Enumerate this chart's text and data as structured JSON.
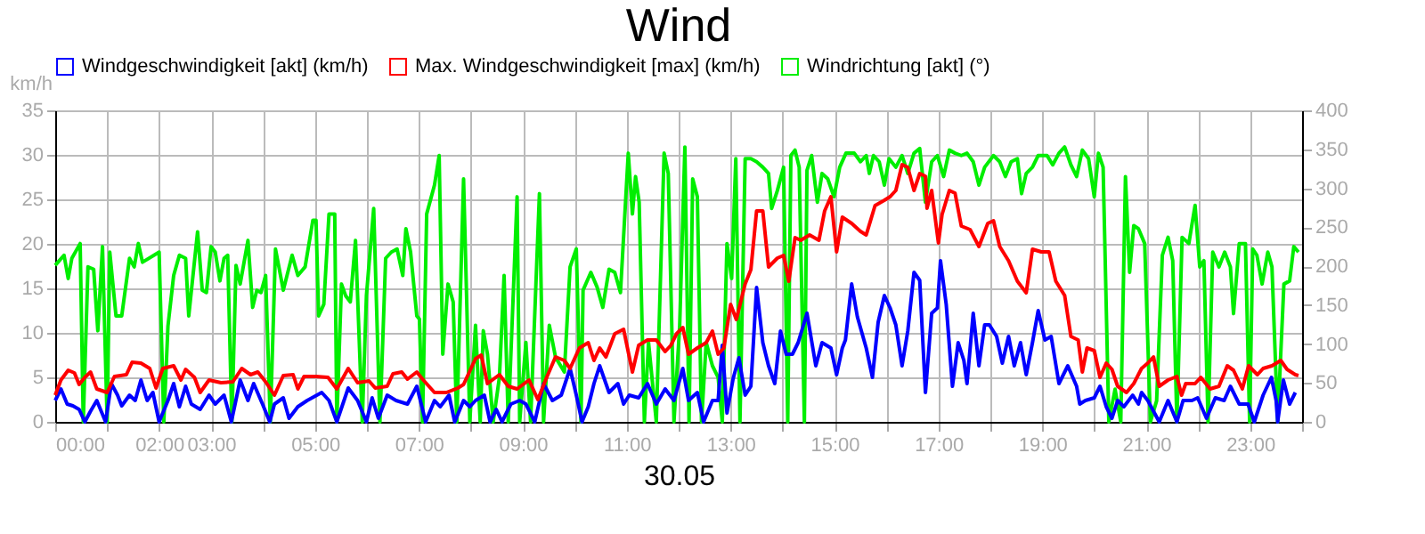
{
  "chart_data": {
    "type": "line",
    "title": "Wind",
    "xlabel": "30.05",
    "ylabel": "km/h",
    "xlim": [
      0,
      24
    ],
    "ylim": [
      0,
      35
    ],
    "yticks": [
      0,
      5,
      10,
      15,
      20,
      25,
      30,
      35
    ],
    "y2lim": [
      0,
      400
    ],
    "y2ticks": [
      0,
      50,
      100,
      150,
      200,
      250,
      300,
      350,
      400
    ],
    "xticks": [
      {
        "value": 0,
        "label": "00:00"
      },
      {
        "value": 1,
        "label": null
      },
      {
        "value": 2,
        "label": "02:00"
      },
      {
        "value": 3,
        "label": "03:00"
      },
      {
        "value": 4,
        "label": null
      },
      {
        "value": 5,
        "label": "05:00"
      },
      {
        "value": 6,
        "label": null
      },
      {
        "value": 7,
        "label": "07:00"
      },
      {
        "value": 8,
        "label": null
      },
      {
        "value": 9,
        "label": "09:00"
      },
      {
        "value": 10,
        "label": null
      },
      {
        "value": 11,
        "label": "11:00"
      },
      {
        "value": 12,
        "label": null
      },
      {
        "value": 13,
        "label": "13:00"
      },
      {
        "value": 14,
        "label": null
      },
      {
        "value": 15,
        "label": "15:00"
      },
      {
        "value": 16,
        "label": null
      },
      {
        "value": 17,
        "label": "17:00"
      },
      {
        "value": 18,
        "label": null
      },
      {
        "value": 19,
        "label": "19:00"
      },
      {
        "value": 20,
        "label": null
      },
      {
        "value": 21,
        "label": "21:00"
      },
      {
        "value": 22,
        "label": null
      },
      {
        "value": 23,
        "label": "23:00"
      },
      {
        "value": 24,
        "label": null
      }
    ],
    "grid": true,
    "legend": "top",
    "marker": "none",
    "line_style": "solid",
    "series": [
      {
        "name": "Windgeschwindigkeit [akt] (km/h)",
        "color": "#0000ff",
        "x": [
          0,
          0.11,
          0.23,
          0.34,
          0.46,
          0.57,
          0.68,
          0.8,
          0.97,
          1.08,
          1.2,
          1.28,
          1.43,
          1.54,
          1.65,
          1.77,
          1.88,
          2.0,
          2.17,
          2.28,
          2.39,
          2.51,
          2.62,
          2.79,
          2.96,
          3.08,
          3.25,
          3.39,
          3.56,
          3.71,
          3.82,
          3.99,
          4.13,
          4.22,
          4.39,
          4.5,
          4.67,
          4.85,
          5.13,
          5.27,
          5.42,
          5.64,
          5.82,
          5.99,
          6.1,
          6.22,
          6.39,
          6.56,
          6.78,
          6.96,
          7.13,
          7.3,
          7.41,
          7.58,
          7.69,
          7.86,
          7.98,
          8.09,
          8.26,
          8.37,
          8.49,
          8.6,
          8.77,
          8.94,
          9.06,
          9.23,
          9.4,
          9.57,
          9.74,
          9.91,
          10.03,
          10.14,
          10.26,
          10.37,
          10.48,
          10.66,
          10.83,
          10.94,
          11.05,
          11.23,
          11.4,
          11.57,
          11.74,
          11.91,
          12.08,
          12.19,
          12.36,
          12.48,
          12.65,
          12.76,
          12.84,
          12.93,
          13.05,
          13.16,
          13.28,
          13.39,
          13.5,
          13.62,
          13.73,
          13.85,
          13.96,
          14.07,
          14.19,
          14.3,
          14.47,
          14.64,
          14.76,
          14.93,
          15.04,
          15.15,
          15.21,
          15.33,
          15.44,
          15.61,
          15.73,
          15.84,
          15.96,
          16.07,
          16.18,
          16.3,
          16.41,
          16.53,
          16.64,
          16.75,
          16.87,
          16.98,
          17.04,
          17.15,
          17.27,
          17.38,
          17.49,
          17.55,
          17.67,
          17.78,
          17.89,
          17.98,
          18.12,
          18.23,
          18.35,
          18.46,
          18.58,
          18.69,
          18.81,
          18.92,
          19.05,
          19.17,
          19.32,
          19.49,
          19.66,
          19.72,
          19.83,
          20.0,
          20.11,
          20.23,
          20.34,
          20.45,
          20.57,
          20.74,
          20.85,
          20.91,
          21.03,
          21.25,
          21.42,
          21.59,
          21.71,
          21.88,
          21.99,
          22.16,
          22.33,
          22.5,
          22.62,
          22.79,
          22.96,
          23.08,
          23.25,
          23.41,
          23.5,
          23.53,
          23.64,
          23.76,
          23.87
        ],
        "values": [
          2.4,
          3.7,
          2.0,
          1.8,
          1.4,
          0,
          1.2,
          2.4,
          0,
          4.3,
          3.0,
          1.8,
          3.0,
          2.4,
          4.7,
          2.4,
          3.3,
          0,
          2.4,
          4.3,
          1.7,
          4.0,
          2.0,
          1.4,
          3.0,
          2.0,
          3.0,
          0,
          4.7,
          2.4,
          4.3,
          2.0,
          0,
          2.0,
          2.7,
          0.4,
          1.7,
          2.4,
          3.3,
          2.4,
          0,
          3.8,
          2.4,
          0,
          2.7,
          0.4,
          3.0,
          2.4,
          2.0,
          4.0,
          0,
          2.4,
          1.7,
          3.0,
          0,
          2.4,
          1.7,
          2.4,
          3.0,
          0,
          1.4,
          0,
          2.0,
          2.4,
          2.0,
          0,
          4.3,
          2.4,
          3.0,
          6.0,
          3.0,
          0,
          1.7,
          4.3,
          6.3,
          3.3,
          4.3,
          2.0,
          3.0,
          2.7,
          4.3,
          2.0,
          3.7,
          2.4,
          6.0,
          2.4,
          3.3,
          0,
          2.4,
          2.4,
          8.6,
          1.0,
          4.9,
          7.2,
          3.0,
          4.0,
          15.1,
          8.9,
          6.3,
          4.3,
          10.2,
          7.6,
          7.6,
          8.9,
          12.2,
          6.3,
          8.9,
          8.3,
          5.3,
          8.3,
          9.2,
          15.5,
          11.8,
          8.3,
          5.0,
          11.2,
          14.2,
          12.8,
          10.9,
          6.3,
          10.2,
          16.8,
          15.9,
          3.3,
          12.2,
          12.8,
          18.1,
          13.2,
          4.0,
          8.9,
          6.9,
          4.3,
          12.2,
          6.3,
          10.9,
          10.9,
          9.6,
          6.6,
          9.6,
          6.3,
          8.9,
          5.3,
          8.9,
          12.5,
          9.2,
          9.6,
          4.3,
          6.3,
          4.0,
          2.0,
          2.4,
          2.7,
          4.0,
          1.7,
          0.4,
          2.4,
          1.7,
          3.0,
          2.0,
          3.3,
          2.4,
          0,
          2.4,
          0,
          2.4,
          2.4,
          2.7,
          0.4,
          2.7,
          2.4,
          4.0,
          2.0,
          2.0,
          0,
          3.0,
          5.0,
          2.4,
          0,
          4.7,
          2.0,
          3.3
        ]
      },
      {
        "name": "Max. Windgeschwindigkeit [max] (km/h)",
        "color": "#ff0000",
        "x": [
          0,
          0.11,
          0.25,
          0.37,
          0.46,
          0.57,
          0.68,
          0.8,
          1.0,
          1.14,
          1.37,
          1.48,
          1.65,
          1.82,
          1.94,
          2.07,
          2.28,
          2.42,
          2.51,
          2.68,
          2.79,
          2.96,
          3.19,
          3.42,
          3.59,
          3.76,
          3.9,
          4.05,
          4.22,
          4.39,
          4.58,
          4.67,
          4.79,
          5.02,
          5.25,
          5.42,
          5.64,
          5.82,
          6.04,
          6.16,
          6.39,
          6.5,
          6.67,
          6.78,
          6.96,
          7.07,
          7.3,
          7.53,
          7.75,
          7.86,
          8.09,
          8.2,
          8.32,
          8.55,
          8.72,
          8.89,
          9.12,
          9.29,
          9.46,
          9.63,
          9.8,
          9.91,
          10.09,
          10.26,
          10.37,
          10.48,
          10.6,
          10.77,
          10.94,
          11.11,
          11.23,
          11.4,
          11.57,
          11.74,
          11.85,
          11.96,
          12.08,
          12.19,
          12.36,
          12.53,
          12.65,
          12.76,
          12.87,
          13.0,
          13.11,
          13.28,
          13.39,
          13.5,
          13.62,
          13.73,
          13.9,
          14.02,
          14.12,
          14.24,
          14.35,
          14.52,
          14.7,
          14.81,
          14.93,
          15.04,
          15.15,
          15.33,
          15.5,
          15.61,
          15.78,
          15.96,
          16.07,
          16.18,
          16.3,
          16.41,
          16.53,
          16.64,
          16.75,
          16.78,
          16.87,
          17.0,
          17.07,
          17.21,
          17.32,
          17.44,
          17.61,
          17.78,
          17.95,
          18.06,
          18.18,
          18.35,
          18.52,
          18.69,
          18.81,
          18.98,
          19.13,
          19.26,
          19.43,
          19.55,
          19.69,
          19.77,
          19.86,
          20.0,
          20.11,
          20.23,
          20.34,
          20.45,
          20.62,
          20.76,
          20.91,
          21.03,
          21.14,
          21.25,
          21.42,
          21.59,
          21.68,
          21.76,
          21.94,
          22.05,
          22.23,
          22.4,
          22.56,
          22.68,
          22.85,
          22.97,
          23.14,
          23.25,
          23.42,
          23.59,
          23.71,
          23.87,
          23.93
        ],
        "values": [
          3.0,
          4.7,
          5.8,
          5.5,
          4.2,
          5.0,
          5.6,
          3.7,
          3.3,
          5.1,
          5.3,
          6.7,
          6.6,
          6.0,
          3.8,
          6.0,
          6.3,
          4.7,
          5.9,
          5.0,
          3.3,
          4.7,
          4.4,
          4.5,
          6.0,
          5.3,
          5.6,
          4.5,
          3.0,
          5.2,
          5.3,
          3.7,
          5.1,
          5.1,
          5.0,
          3.7,
          6.0,
          4.4,
          4.6,
          3.8,
          4.0,
          5.4,
          5.6,
          4.8,
          5.6,
          4.8,
          3.3,
          3.3,
          3.8,
          4.2,
          7.1,
          7.5,
          4.3,
          5.3,
          4.0,
          3.7,
          4.7,
          2.5,
          5.0,
          7.3,
          6.9,
          6.0,
          8.3,
          8.9,
          6.9,
          8.3,
          7.3,
          9.9,
          10.4,
          5.6,
          8.6,
          9.2,
          9.2,
          7.9,
          8.6,
          9.9,
          10.6,
          7.6,
          8.3,
          8.9,
          10.2,
          7.6,
          8.3,
          13.2,
          11.5,
          15.5,
          17.1,
          23.7,
          23.7,
          17.4,
          18.4,
          18.7,
          15.8,
          20.7,
          20.4,
          21.0,
          20.4,
          23.7,
          25.3,
          19.1,
          23.0,
          22.3,
          21.4,
          21.0,
          24.3,
          24.9,
          25.3,
          26.0,
          28.9,
          28.6,
          26.0,
          27.9,
          27.6,
          24.0,
          26.0,
          20.1,
          23.3,
          26.0,
          25.7,
          22.0,
          21.6,
          19.7,
          22.3,
          22.6,
          19.7,
          18.1,
          15.8,
          14.5,
          19.4,
          19.1,
          19.1,
          15.8,
          14.2,
          9.6,
          9.2,
          5.6,
          8.3,
          8.0,
          5.0,
          6.6,
          5.9,
          4.0,
          3.3,
          4.3,
          6.0,
          6.6,
          7.3,
          4.0,
          4.7,
          5.1,
          3.0,
          4.3,
          4.3,
          5.0,
          3.7,
          4.0,
          6.3,
          5.8,
          3.7,
          6.3,
          5.3,
          6.0,
          6.3,
          6.9,
          5.9,
          5.3,
          5.2
        ]
      },
      {
        "name": "Windrichtung [akt] (°)",
        "color": "#00ee00",
        "axis": "y2",
        "x": [
          0,
          0.17,
          0.25,
          0.32,
          0.48,
          0.54,
          0.63,
          0.74,
          0.82,
          0.91,
          1.0,
          1.05,
          1.17,
          1.28,
          1.43,
          1.52,
          1.6,
          1.68,
          2.0,
          2.09,
          2.17,
          2.28,
          2.39,
          2.51,
          2.57,
          2.74,
          2.83,
          2.91,
          3.0,
          3.08,
          3.17,
          3.25,
          3.32,
          3.4,
          3.48,
          3.56,
          3.71,
          3.8,
          3.88,
          3.96,
          4.05,
          4.14,
          4.24,
          4.39,
          4.56,
          4.67,
          4.81,
          4.96,
          5.02,
          5.07,
          5.17,
          5.27,
          5.38,
          5.42,
          5.51,
          5.59,
          5.68,
          5.78,
          5.91,
          5.99,
          6.13,
          6.25,
          6.36,
          6.47,
          6.58,
          6.69,
          6.75,
          6.84,
          6.96,
          7.01,
          7.07,
          7.15,
          7.3,
          7.39,
          7.46,
          7.56,
          7.66,
          7.73,
          7.86,
          7.98,
          8.09,
          8.18,
          8.24,
          8.32,
          8.43,
          8.55,
          8.64,
          8.72,
          8.89,
          8.94,
          9.06,
          9.15,
          9.32,
          9.4,
          9.51,
          9.63,
          9.8,
          9.91,
          10.03,
          10.12,
          10.16,
          10.31,
          10.43,
          10.54,
          10.66,
          10.77,
          10.88,
          11.03,
          11.11,
          11.17,
          11.24,
          11.34,
          11.42,
          11.57,
          11.72,
          11.8,
          11.91,
          12.02,
          12.12,
          12.2,
          12.27,
          12.36,
          12.44,
          12.53,
          12.65,
          12.76,
          12.84,
          12.93,
          13.02,
          13.1,
          13.18,
          13.28,
          13.39,
          13.5,
          13.62,
          13.73,
          13.79,
          13.9,
          14.02,
          14.1,
          14.16,
          14.24,
          14.32,
          14.42,
          14.47,
          14.56,
          14.67,
          14.76,
          14.87,
          14.99,
          15.1,
          15.22,
          15.38,
          15.5,
          15.61,
          15.67,
          15.75,
          15.86,
          15.96,
          16.05,
          16.18,
          16.3,
          16.41,
          16.53,
          16.64,
          16.75,
          16.87,
          16.98,
          17.1,
          17.21,
          17.32,
          17.44,
          17.55,
          17.67,
          17.78,
          17.89,
          18.06,
          18.18,
          18.29,
          18.4,
          18.52,
          18.6,
          18.69,
          18.81,
          18.92,
          19.09,
          19.2,
          19.32,
          19.43,
          19.55,
          19.66,
          19.77,
          19.89,
          20.0,
          20.08,
          20.17,
          20.28,
          20.4,
          20.51,
          20.6,
          20.68,
          20.76,
          20.85,
          20.97,
          21.08,
          21.2,
          21.31,
          21.42,
          21.51,
          21.59,
          21.69,
          21.82,
          21.94,
          22.03,
          22.11,
          22.19,
          22.28,
          22.4,
          22.51,
          22.62,
          22.68,
          22.79,
          22.91,
          22.99,
          23.05,
          23.13,
          23.23,
          23.34,
          23.42,
          23.53,
          23.65,
          23.76,
          23.84,
          23.93
        ],
        "values": [
          201,
          214,
          184,
          210,
          229,
          0,
          199,
          196,
          117,
          225,
          0,
          218,
          136,
          136,
          210,
          199,
          229,
          205,
          218,
          0,
          123,
          188,
          214,
          210,
          136,
          244,
          169,
          166,
          225,
          218,
          181,
          210,
          214,
          0,
          201,
          177,
          233,
          147,
          169,
          166,
          188,
          0,
          222,
          169,
          214,
          188,
          199,
          259,
          259,
          136,
          151,
          267,
          267,
          0,
          177,
          162,
          154,
          233,
          0,
          162,
          274,
          0,
          210,
          218,
          222,
          188,
          248,
          218,
          136,
          132,
          0,
          267,
          304,
          342,
          87,
          177,
          154,
          0,
          312,
          0,
          124,
          0,
          117,
          87,
          0,
          57,
          188,
          0,
          289,
          0,
          102,
          0,
          293,
          0,
          124,
          83,
          64,
          199,
          222,
          0,
          169,
          192,
          173,
          147,
          196,
          192,
          166,
          345,
          267,
          315,
          282,
          0,
          102,
          0,
          345,
          319,
          0,
          124,
          353,
          0,
          312,
          289,
          0,
          102,
          72,
          57,
          0,
          229,
          184,
          338,
          0,
          338,
          338,
          334,
          327,
          319,
          274,
          297,
          327,
          0,
          342,
          349,
          327,
          0,
          323,
          342,
          282,
          319,
          312,
          289,
          327,
          345,
          345,
          334,
          342,
          319,
          342,
          334,
          304,
          338,
          327,
          342,
          319,
          345,
          351,
          282,
          334,
          342,
          315,
          349,
          345,
          342,
          345,
          334,
          304,
          327,
          342,
          334,
          315,
          334,
          338,
          293,
          319,
          327,
          342,
          342,
          330,
          345,
          353,
          330,
          315,
          349,
          338,
          289,
          345,
          327,
          0,
          42,
          0,
          315,
          192,
          252,
          248,
          229,
          0,
          27,
          214,
          237,
          207,
          0,
          237,
          229,
          278,
          199,
          207,
          0,
          218,
          199,
          218,
          199,
          139,
          229,
          229,
          0,
          222,
          214,
          177,
          218,
          199,
          0,
          177,
          181,
          225,
          218
        ]
      }
    ]
  }
}
